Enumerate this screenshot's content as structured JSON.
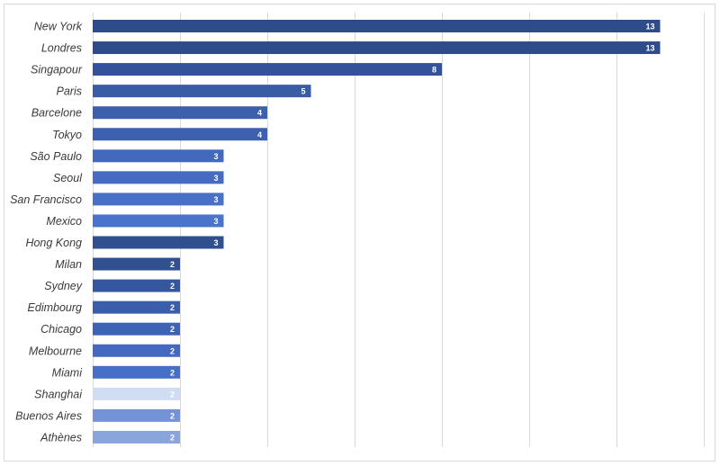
{
  "chart_data": {
    "type": "bar",
    "orientation": "horizontal",
    "title": "",
    "xlabel": "",
    "ylabel": "",
    "categories": [
      "New York",
      "Londres",
      "Singapour",
      "Paris",
      "Barcelone",
      "Tokyo",
      "São Paulo",
      "Seoul",
      "San Francisco",
      "Mexico",
      "Hong Kong",
      "Milan",
      "Sydney",
      "Edimbourg",
      "Chicago",
      "Melbourne",
      "Miami",
      "Shanghai",
      "Buenos Aires",
      "Athènes"
    ],
    "values": [
      13,
      13,
      8,
      5,
      4,
      4,
      3,
      3,
      3,
      3,
      3,
      2,
      2,
      2,
      2,
      2,
      2,
      2,
      2,
      2
    ],
    "colors": [
      "#2f4c8a",
      "#2f4c8a",
      "#34529a",
      "#3a5ba6",
      "#3d5fae",
      "#3d60b0",
      "#4369bf",
      "#456bc2",
      "#4870c7",
      "#4a74cc",
      "#2f4f8f",
      "#31508f",
      "#3557a0",
      "#3a5eab",
      "#3e63b4",
      "#4369c0",
      "#4670c8",
      "#cfdcf2",
      "#7393d6",
      "#8aa4dc"
    ],
    "xlim": [
      0,
      14
    ],
    "x_gridlines": [
      0,
      2,
      4,
      6,
      8,
      10,
      12,
      14
    ],
    "grid": true,
    "legend": "none",
    "data_labels": true
  }
}
